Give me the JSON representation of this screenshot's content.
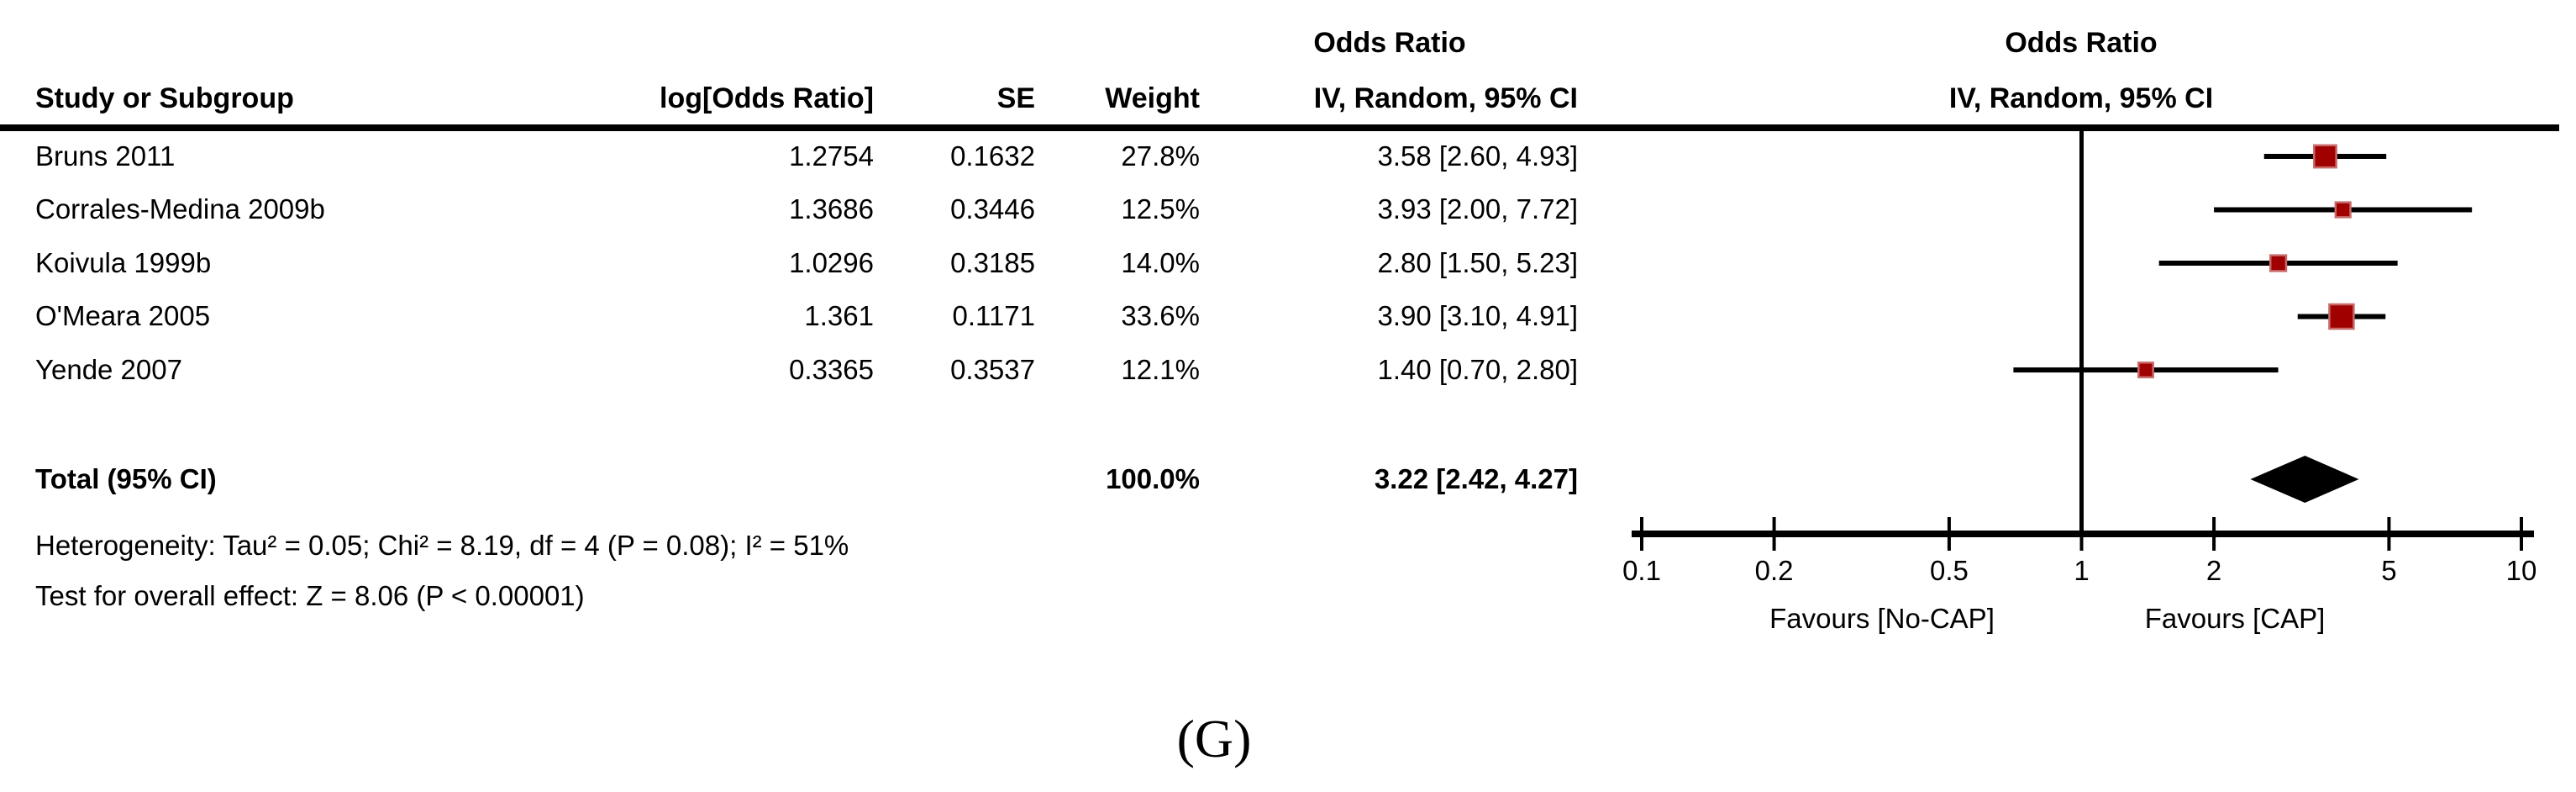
{
  "table": {
    "headers": {
      "study": "Study or Subgroup",
      "log_or": "log[Odds Ratio]",
      "se": "SE",
      "weight": "Weight",
      "or_stat_line1": "Odds Ratio",
      "or_stat_line2": "IV, Random, 95% CI",
      "or_plot_line1": "Odds Ratio",
      "or_plot_line2": "IV, Random, 95% CI"
    },
    "studies": [
      {
        "name": "Bruns 2011",
        "log_or": "1.2754",
        "se": "0.1632",
        "weight": "27.8%",
        "or_ci": "3.58 [2.60, 4.93]"
      },
      {
        "name": "Corrales-Medina 2009b",
        "log_or": "1.3686",
        "se": "0.3446",
        "weight": "12.5%",
        "or_ci": "3.93 [2.00, 7.72]"
      },
      {
        "name": "Koivula 1999b",
        "log_or": "1.0296",
        "se": "0.3185",
        "weight": "14.0%",
        "or_ci": "2.80 [1.50, 5.23]"
      },
      {
        "name": "O'Meara 2005",
        "log_or": "1.361",
        "se": "0.1171",
        "weight": "33.6%",
        "or_ci": "3.90 [3.10, 4.91]"
      },
      {
        "name": "Yende 2007",
        "log_or": "0.3365",
        "se": "0.3537",
        "weight": "12.1%",
        "or_ci": "1.40 [0.70, 2.80]"
      }
    ],
    "total": {
      "label": "Total (95% CI)",
      "weight": "100.0%",
      "or_ci": "3.22 [2.42, 4.27]"
    },
    "heterogeneity": "Heterogeneity: Tau² = 0.05; Chi² = 8.19, df = 4 (P = 0.08); I² = 51%",
    "overall_effect": "Test for overall effect: Z = 8.06 (P < 0.00001)"
  },
  "chart_data": {
    "type": "forest",
    "x_scale": "log10",
    "axis_range": [
      0.1,
      10
    ],
    "axis_ticks": [
      "0.1",
      "0.2",
      "0.5",
      "1",
      "2",
      "5",
      "10"
    ],
    "null_line_at": 1,
    "effect_measure": "Odds Ratio",
    "model": "IV, Random, 95% CI",
    "studies": [
      {
        "name": "Bruns 2011",
        "or": 3.58,
        "ci_low": 2.6,
        "ci_high": 4.93,
        "weight_pct": 27.8
      },
      {
        "name": "Corrales-Medina 2009b",
        "or": 3.93,
        "ci_low": 2.0,
        "ci_high": 7.72,
        "weight_pct": 12.5
      },
      {
        "name": "Koivula 1999b",
        "or": 2.8,
        "ci_low": 1.5,
        "ci_high": 5.23,
        "weight_pct": 14.0
      },
      {
        "name": "O'Meara 2005",
        "or": 3.9,
        "ci_low": 3.1,
        "ci_high": 4.91,
        "weight_pct": 33.6
      },
      {
        "name": "Yende 2007",
        "or": 1.4,
        "ci_low": 0.7,
        "ci_high": 2.8,
        "weight_pct": 12.1
      }
    ],
    "total": {
      "or": 3.22,
      "ci_low": 2.42,
      "ci_high": 4.27,
      "weight_pct": 100.0
    },
    "favours_left": "Favours [No-CAP]",
    "favours_right": "Favours [CAP]",
    "marker_color": "#a00000",
    "marker_border": "#c86a6a",
    "diamond_color": "#000000"
  },
  "caption": "(G)"
}
